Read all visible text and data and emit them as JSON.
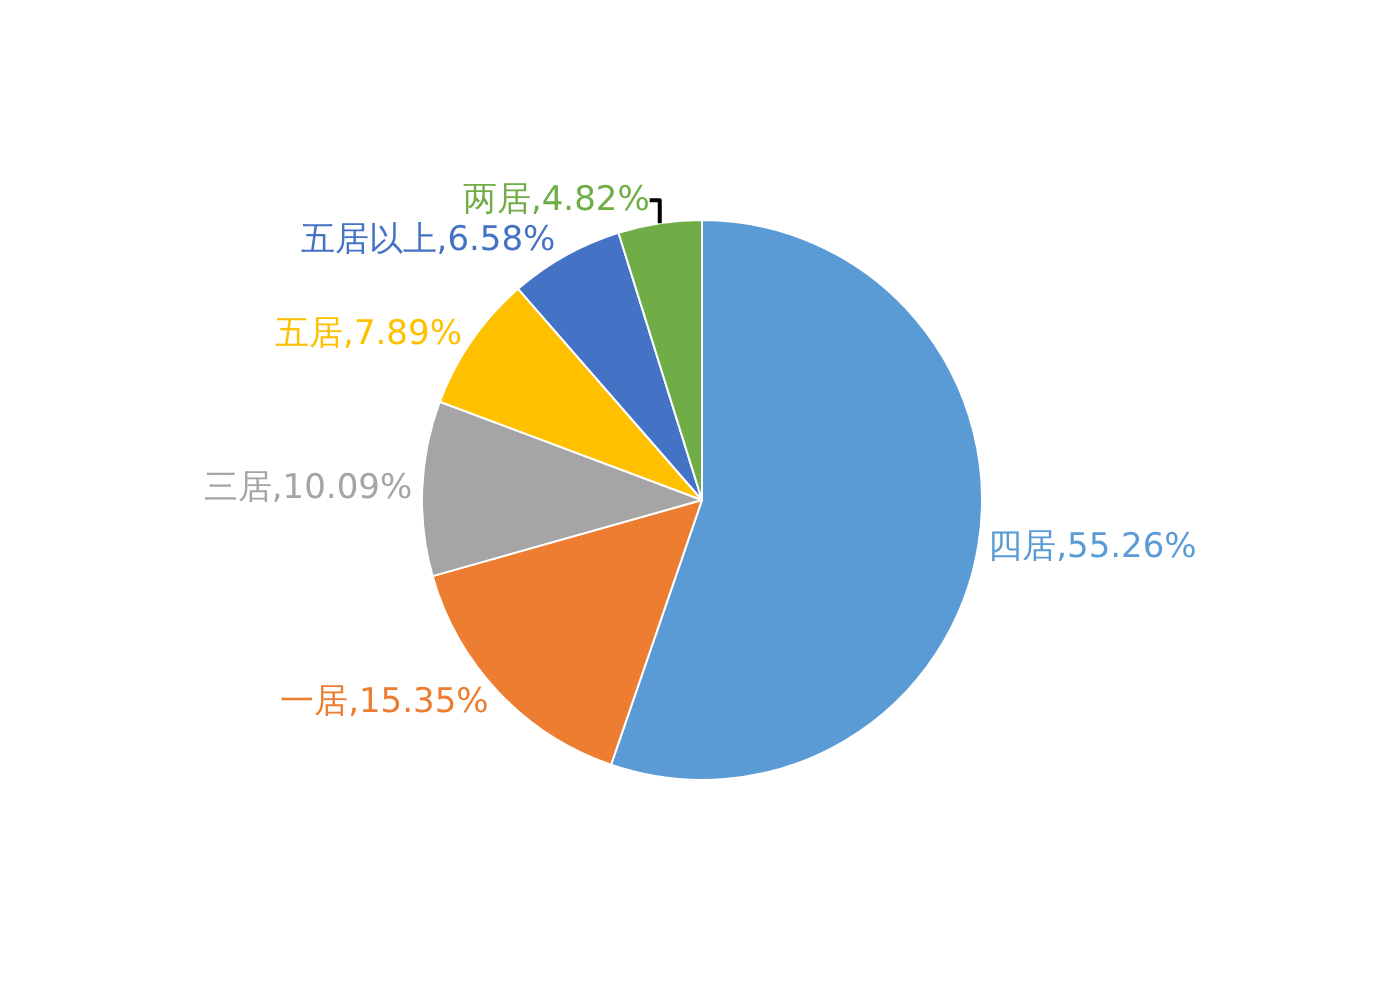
{
  "chart_data": {
    "type": "pie",
    "categories": [
      "四居",
      "一居",
      "三居",
      "五居",
      "五居以上",
      "两居"
    ],
    "values": [
      55.26,
      15.35,
      10.09,
      7.89,
      6.58,
      4.82
    ],
    "value_labels": [
      "55.26%",
      "15.35%",
      "10.09%",
      "7.89%",
      "6.58%",
      "4.82%"
    ],
    "colors": [
      "#5b9bd5",
      "#ed7d31",
      "#a5a5a5",
      "#ffc000",
      "#4472c4",
      "#70ad47"
    ],
    "legend": false
  }
}
